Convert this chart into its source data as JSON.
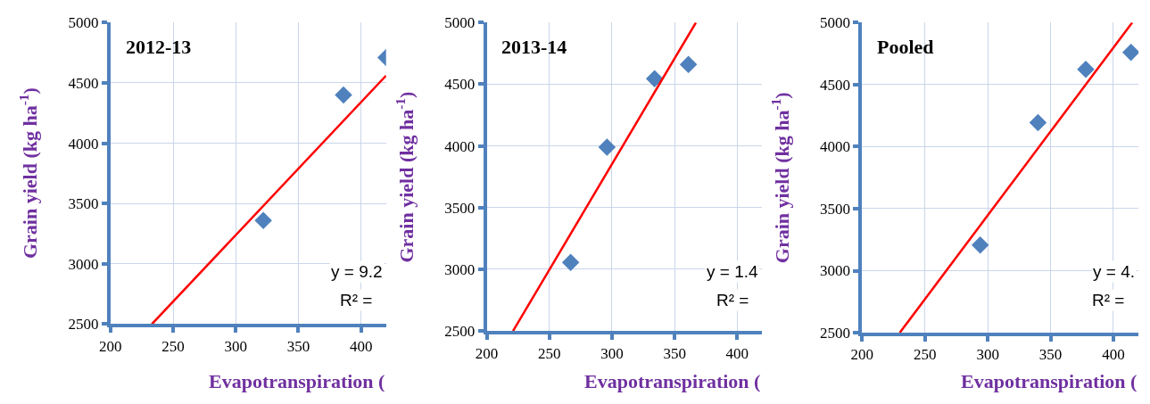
{
  "chart_data": [
    {
      "type": "scatter",
      "title": "2012-13",
      "xlabel": "Evapotranspiration (",
      "ylabel": "Grain yield (kg ha$^{-1}$)",
      "xlim": [
        200,
        420
      ],
      "ylim": [
        2500,
        5000
      ],
      "xticks": [
        200,
        250,
        300,
        350,
        400
      ],
      "yticks": [
        2500,
        3000,
        3500,
        4000,
        4500,
        5000
      ],
      "grid": true,
      "series": [
        {
          "color": "#4f81bd",
          "marker": "diamond",
          "x": [
            322,
            386,
            420
          ],
          "values": [
            3360,
            4400,
            4710
          ]
        },
        {
          "type": "line",
          "color": "#ff0000",
          "marker": "none",
          "x": [
            233,
            420
          ],
          "values": [
            2500,
            4560
          ]
        }
      ],
      "annotations": [
        "y = 9.2",
        "R² ="
      ]
    },
    {
      "type": "scatter",
      "title": "2013-14",
      "xlabel": "Evapotranspiration (",
      "ylabel": "Grain yield (kg ha$^{-1}$)",
      "xlim": [
        200,
        420
      ],
      "ylim": [
        2500,
        5000
      ],
      "xticks": [
        200,
        250,
        300,
        350,
        400
      ],
      "yticks": [
        2500,
        3000,
        3500,
        4000,
        4500,
        5000
      ],
      "grid": true,
      "series": [
        {
          "color": "#4f81bd",
          "marker": "diamond",
          "x": [
            267,
            296,
            334,
            361
          ],
          "values": [
            3055,
            3990,
            4545,
            4660
          ]
        },
        {
          "type": "line",
          "color": "#ff0000",
          "marker": "none",
          "x": [
            221,
            367
          ],
          "values": [
            2500,
            5000
          ]
        }
      ],
      "annotations": [
        "y = 1.4",
        "R² ="
      ]
    },
    {
      "type": "scatter",
      "title": "Pooled",
      "xlabel": "Evapotranspiration (",
      "ylabel": "Grain yield (kg ha$^{-1}$)",
      "xlim": [
        200,
        420
      ],
      "ylim": [
        2500,
        5000
      ],
      "xticks": [
        200,
        250,
        300,
        350,
        400
      ],
      "yticks": [
        2500,
        3000,
        3500,
        4000,
        4500,
        5000
      ],
      "grid": true,
      "series": [
        {
          "color": "#4f81bd",
          "marker": "diamond",
          "x": [
            294,
            340,
            378,
            414
          ],
          "values": [
            3207,
            4193,
            4622,
            4760
          ]
        },
        {
          "type": "line",
          "color": "#ff0000",
          "marker": "none",
          "x": [
            230,
            415
          ],
          "values": [
            2500,
            5000
          ]
        }
      ],
      "annotations": [
        "y = 4.",
        "R² ="
      ]
    }
  ]
}
